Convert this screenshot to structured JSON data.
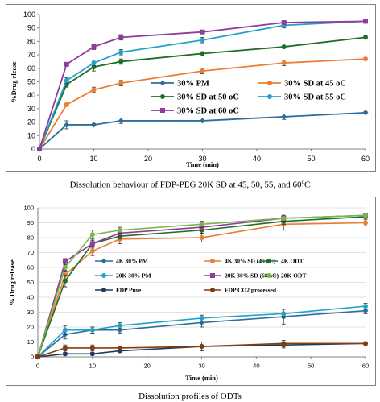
{
  "captions": {
    "top": "Dissolution behaviour of FDP-PEG 20K SD at 45, 50, 55, and 60",
    "top_superscript": "o",
    "top_suffix": "C",
    "bottom": "Dissolution profiles of ODTs"
  },
  "chart_data": [
    {
      "type": "line",
      "xlabel": "Time (min)",
      "ylabel": "%Drug rlease",
      "xlim": [
        0,
        60
      ],
      "ylim": [
        0,
        100
      ],
      "xticks": [
        0,
        10,
        20,
        30,
        40,
        50,
        60
      ],
      "yticks": [
        0,
        10,
        20,
        30,
        40,
        50,
        60,
        70,
        80,
        90,
        100
      ],
      "grid": false,
      "legend_position": "inside-left",
      "x": [
        0,
        5,
        10,
        15,
        30,
        45,
        60
      ],
      "series": [
        {
          "name": "30% PM",
          "color": "#2e6e9c",
          "marker": "diamond",
          "values": [
            0,
            18,
            18,
            21,
            21,
            24,
            27
          ],
          "err": [
            0,
            3,
            1,
            2,
            0,
            2,
            1
          ]
        },
        {
          "name": "30% SD at 45 oC",
          "color": "#ed7d31",
          "marker": "circle",
          "values": [
            0,
            33,
            44,
            49,
            58,
            64,
            67
          ],
          "err": [
            0,
            1,
            2,
            2,
            2,
            2,
            1
          ]
        },
        {
          "name": "30% SD at 50 oC",
          "color": "#1d6f2a",
          "marker": "circle",
          "values": [
            0,
            48,
            61,
            65,
            71,
            76,
            83
          ],
          "err": [
            0,
            2,
            3,
            2,
            1,
            1,
            1
          ]
        },
        {
          "name": "30% SD at 55 oC",
          "color": "#23a2c9",
          "marker": "circle",
          "values": [
            0,
            51,
            64,
            72,
            81,
            92,
            95
          ],
          "err": [
            0,
            2,
            2,
            2,
            2,
            2,
            1
          ]
        },
        {
          "name": "30% SD at 60 oC",
          "color": "#8f3c9a",
          "marker": "square",
          "values": [
            0,
            63,
            76,
            83,
            87,
            94,
            95
          ],
          "err": [
            0,
            1,
            2,
            2,
            1,
            1,
            1
          ]
        }
      ]
    },
    {
      "type": "line",
      "xlabel": "Time (min)",
      "ylabel": "% Drug release",
      "xlim": [
        0,
        60
      ],
      "ylim": [
        0,
        100
      ],
      "xticks": [
        0,
        10,
        20,
        30,
        40,
        50,
        60
      ],
      "yticks": [
        0,
        10,
        20,
        30,
        40,
        50,
        60,
        70,
        80,
        90,
        100
      ],
      "grid": true,
      "legend_position": "middle",
      "x": [
        0,
        5,
        10,
        15,
        30,
        45,
        60
      ],
      "series": [
        {
          "name": "4K 30% PM",
          "color": "#2e6e9c",
          "marker": "diamond",
          "values": [
            0,
            15,
            18,
            18,
            23,
            27,
            31
          ],
          "err": [
            0,
            3,
            2,
            2,
            3,
            5,
            2
          ]
        },
        {
          "name": "4K 30% SD (45 oC)",
          "color": "#ed7d31",
          "marker": "circle",
          "values": [
            0,
            55,
            71,
            79,
            80,
            89,
            90
          ],
          "err": [
            0,
            3,
            3,
            3,
            3,
            4,
            2
          ]
        },
        {
          "name": "4K ODT",
          "color": "#1d6f2a",
          "marker": "circle",
          "values": [
            0,
            51,
            76,
            81,
            85,
            91,
            94
          ],
          "err": [
            0,
            4,
            3,
            2,
            2,
            2,
            1
          ]
        },
        {
          "name": "20K 30% PM",
          "color": "#23a2c9",
          "marker": "circle",
          "values": [
            0,
            18,
            18,
            21,
            26,
            29,
            34
          ],
          "err": [
            0,
            3,
            2,
            2,
            2,
            3,
            2
          ]
        },
        {
          "name": "20K 30% SD (60 oC)",
          "color": "#8f3c9a",
          "marker": "square",
          "values": [
            0,
            64,
            76,
            83,
            87,
            93,
            95
          ],
          "err": [
            0,
            2,
            2,
            2,
            2,
            2,
            1
          ]
        },
        {
          "name": "20K ODT",
          "color": "#7ab648",
          "marker": "circle",
          "values": [
            0,
            60,
            82,
            85,
            89,
            93,
            95
          ],
          "err": [
            0,
            3,
            3,
            2,
            2,
            2,
            1
          ]
        },
        {
          "name": "FDP Pure",
          "color": "#1f3a5a",
          "marker": "circle",
          "values": [
            0,
            2,
            2,
            4,
            7,
            8,
            9
          ],
          "err": [
            0,
            1,
            1,
            1,
            1,
            2,
            1
          ]
        },
        {
          "name": "FDP CO2 processed",
          "color": "#843c0c",
          "marker": "circle",
          "values": [
            0,
            6,
            6,
            6,
            7,
            9,
            9
          ],
          "err": [
            0,
            2,
            2,
            1,
            3,
            2,
            1
          ]
        }
      ]
    }
  ]
}
